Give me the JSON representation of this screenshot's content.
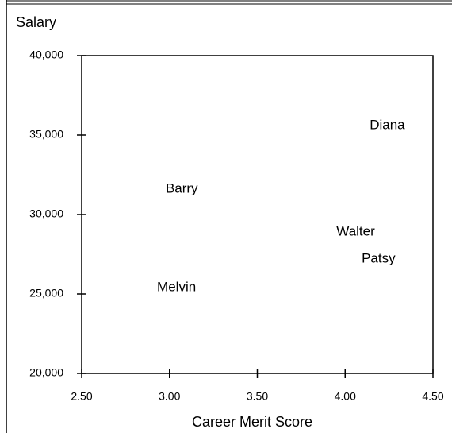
{
  "chart_data": {
    "type": "scatter",
    "x_label": "Career Merit Score",
    "y_label": "Salary",
    "point_labels": [
      "Barry",
      "Diana",
      "Walter",
      "Patsy",
      "Melvin"
    ],
    "x": [
      3.07,
      4.24,
      4.06,
      4.19,
      3.04
    ],
    "values": [
      31600,
      35600,
      28900,
      27200,
      25400
    ],
    "xlim": [
      2.5,
      4.5
    ],
    "ylim": [
      20000,
      40000
    ],
    "xticks": [
      {
        "value": 2.5,
        "label": "2.50"
      },
      {
        "value": 3,
        "label": "3.00"
      },
      {
        "value": 3.5,
        "label": "3.50"
      },
      {
        "value": 4,
        "label": "4.00"
      },
      {
        "value": 4.5,
        "label": "4.50"
      }
    ],
    "yticks": [
      {
        "value": 20000,
        "label": "20,000"
      },
      {
        "value": 25000,
        "label": "25,000"
      },
      {
        "value": 30000,
        "label": "30,000"
      },
      {
        "value": 35000,
        "label": "35,000"
      },
      {
        "value": 40000,
        "label": "40,000"
      }
    ]
  }
}
